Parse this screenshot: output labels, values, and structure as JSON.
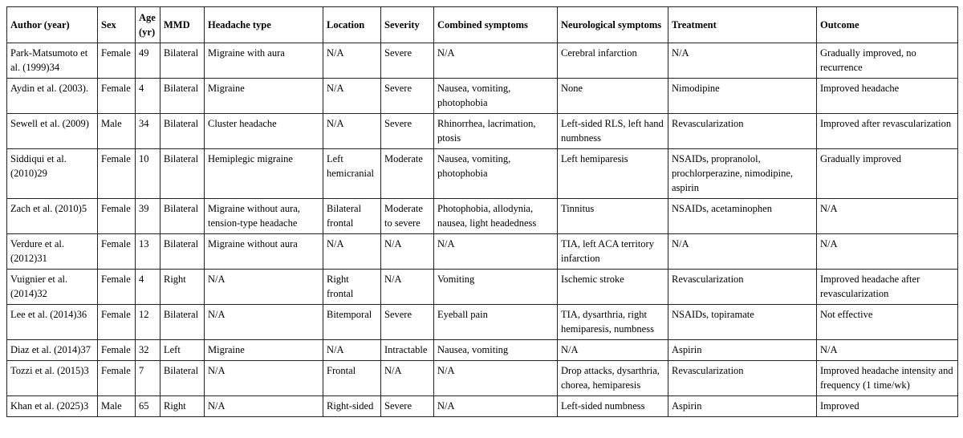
{
  "table": {
    "headers": [
      "Author (year)",
      "Sex",
      "Age (yr)",
      "MMD",
      "Headache type",
      "Location",
      "Severity",
      "Combined symptoms",
      "Neurological symptoms",
      "Treatment",
      "Outcome"
    ],
    "rows": [
      [
        "Park-Matsumoto et al. (1999)34",
        "Female",
        "49",
        "Bilateral",
        "Migraine with aura",
        "N/A",
        "Severe",
        "N/A",
        "Cerebral infarction",
        "N/A",
        "Gradually improved, no recurrence"
      ],
      [
        "Aydin et al. (2003).",
        "Female",
        "4",
        "Bilateral",
        "Migraine",
        "N/A",
        "Severe",
        "Nausea, vomiting, photophobia",
        "None",
        "Nimodipine",
        "Improved headache"
      ],
      [
        "Sewell et al. (2009)",
        "Male",
        "34",
        "Bilateral",
        "Cluster headache",
        "N/A",
        "Severe",
        "Rhinorrhea, lacrimation, ptosis",
        "Left-sided RLS, left hand numbness",
        "Revascularization",
        "Improved after revascularization"
      ],
      [
        "Siddiqui et al. (2010)29",
        "Female",
        "10",
        "Bilateral",
        "Hemiplegic migraine",
        "Left hemicranial",
        "Moderate",
        "Nausea, vomiting, photophobia",
        "Left hemiparesis",
        "NSAIDs, propranolol, prochlorperazine, nimodipine, aspirin",
        "Gradually improved"
      ],
      [
        "Zach et al. (2010)5",
        "Female",
        "39",
        "Bilateral",
        "Migraine without aura, tension-type headache",
        "Bilateral frontal",
        "Moderate to severe",
        "Photophobia, allodynia, nausea, light headedness",
        "Tinnitus",
        "NSAIDs, acetaminophen",
        "N/A"
      ],
      [
        "Verdure et al. (2012)31",
        "Female",
        "13",
        "Bilateral",
        "Migraine without aura",
        "N/A",
        "N/A",
        "N/A",
        "TIA, left ACA territory infarction",
        "N/A",
        "N/A"
      ],
      [
        "Vuignier et al. (2014)32",
        "Female",
        "4",
        "Right",
        "N/A",
        "Right frontal",
        "N/A",
        "Vomiting",
        "Ischemic stroke",
        "Revascularization",
        "Improved headache after revascularization"
      ],
      [
        "Lee et al. (2014)36",
        "Female",
        "12",
        "Bilateral",
        "N/A",
        "Bitemporal",
        "Severe",
        "Eyeball pain",
        "TIA, dysarthria, right hemiparesis, numbness",
        "NSAIDs, topiramate",
        "Not effective"
      ],
      [
        "Diaz et al. (2014)37",
        "Female",
        "32",
        "Left",
        "Migraine",
        "N/A",
        "Intractable",
        "Nausea, vomiting",
        "N/A",
        "Aspirin",
        "N/A"
      ],
      [
        "Tozzi et al. (2015)3",
        "Female",
        "7",
        "Bilateral",
        "N/A",
        "Frontal",
        "N/A",
        "N/A",
        "Drop attacks, dysarthria, chorea, hemiparesis",
        "Revascularization",
        "Improved headache intensity and frequency (1 time/wk)"
      ],
      [
        "Khan et al. (2025)3",
        "Male",
        "65",
        "Right",
        "N/A",
        "Right-sided",
        "Severe",
        "N/A",
        "Left-sided numbness",
        "Aspirin",
        "Improved"
      ]
    ]
  }
}
